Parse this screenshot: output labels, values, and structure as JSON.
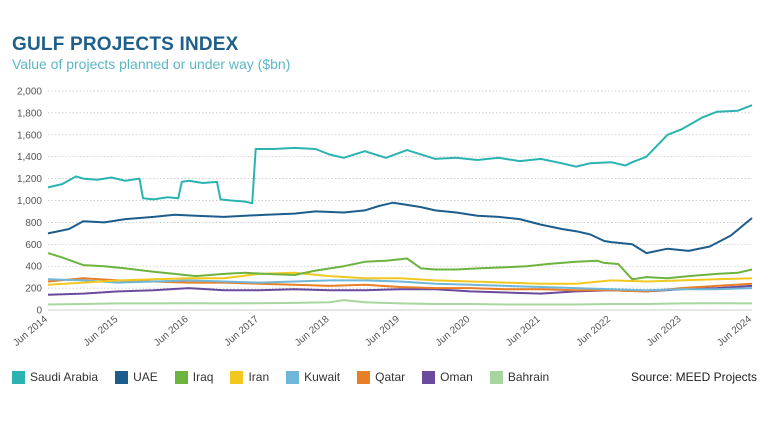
{
  "header": {
    "title": "GULF PROJECTS INDEX",
    "subtitle": "Value of projects planned or under way ($bn)"
  },
  "source": "Source: MEED Projects",
  "chart_data": {
    "type": "line",
    "ylim": [
      0,
      2000
    ],
    "yticks": [
      "0",
      "200",
      "400",
      "600",
      "800",
      "1,000",
      "1,200",
      "1,400",
      "1,600",
      "1,800",
      "2,000"
    ],
    "xlim": [
      2014.5,
      2024.5
    ],
    "xtick_labels": [
      "Jun 2014",
      "Jun 2015",
      "Jun 2016",
      "Jun 2017",
      "Jun 2018",
      "Jun 2019",
      "Jun 2020",
      "Jun 2021",
      "Jun 2022",
      "Jun 2023",
      "Jun 2024"
    ],
    "grid": true,
    "legend_position": "bottom",
    "series": [
      {
        "name": "Saudi Arabia",
        "color": "#2bb3b1",
        "x": [
          2014.5,
          2014.7,
          2014.9,
          2015.0,
          2015.2,
          2015.4,
          2015.6,
          2015.8,
          2015.85,
          2016.0,
          2016.2,
          2016.35,
          2016.4,
          2016.5,
          2016.7,
          2016.9,
          2016.95,
          2017.1,
          2017.3,
          2017.4,
          2017.45,
          2017.7,
          2018.0,
          2018.3,
          2018.5,
          2018.7,
          2019.0,
          2019.3,
          2019.6,
          2019.9,
          2020.0,
          2020.3,
          2020.6,
          2020.9,
          2021.2,
          2021.5,
          2021.8,
          2022.0,
          2022.2,
          2022.5,
          2022.7,
          2022.8,
          2023.0,
          2023.3,
          2023.5,
          2023.8,
          2024.0,
          2024.3,
          2024.5
        ],
        "y": [
          1120,
          1150,
          1220,
          1200,
          1190,
          1210,
          1180,
          1200,
          1020,
          1010,
          1030,
          1020,
          1170,
          1180,
          1160,
          1170,
          1010,
          1000,
          990,
          975,
          1470,
          1470,
          1480,
          1470,
          1420,
          1390,
          1450,
          1390,
          1460,
          1400,
          1380,
          1390,
          1370,
          1390,
          1360,
          1380,
          1340,
          1310,
          1340,
          1350,
          1320,
          1350,
          1400,
          1600,
          1650,
          1760,
          1810,
          1820,
          1870
        ]
      },
      {
        "name": "UAE",
        "color": "#1d5d8c",
        "x": [
          2014.5,
          2014.8,
          2015.0,
          2015.3,
          2015.6,
          2016.0,
          2016.3,
          2016.6,
          2017.0,
          2017.3,
          2017.6,
          2018.0,
          2018.3,
          2018.7,
          2019.0,
          2019.2,
          2019.4,
          2019.6,
          2019.8,
          2020.0,
          2020.3,
          2020.6,
          2020.9,
          2021.2,
          2021.5,
          2021.8,
          2022.0,
          2022.2,
          2022.4,
          2022.5,
          2022.8,
          2023.0,
          2023.3,
          2023.6,
          2023.9,
          2024.2,
          2024.5
        ],
        "y": [
          700,
          740,
          810,
          800,
          830,
          850,
          870,
          860,
          850,
          860,
          870,
          880,
          900,
          890,
          910,
          950,
          980,
          960,
          940,
          910,
          890,
          860,
          850,
          830,
          780,
          740,
          720,
          690,
          630,
          620,
          600,
          520,
          560,
          540,
          580,
          680,
          840
        ]
      },
      {
        "name": "Iraq",
        "color": "#6db33f",
        "x": [
          2014.5,
          2014.7,
          2015.0,
          2015.3,
          2015.6,
          2016.0,
          2016.3,
          2016.6,
          2017.0,
          2017.3,
          2017.6,
          2018.0,
          2018.3,
          2018.7,
          2019.0,
          2019.3,
          2019.6,
          2019.8,
          2020.0,
          2020.3,
          2020.6,
          2021.0,
          2021.3,
          2021.6,
          2022.0,
          2022.3,
          2022.4,
          2022.6,
          2022.8,
          2023.0,
          2023.3,
          2023.6,
          2024.0,
          2024.3,
          2024.5
        ],
        "y": [
          520,
          480,
          410,
          400,
          380,
          350,
          330,
          310,
          330,
          340,
          330,
          320,
          360,
          400,
          440,
          450,
          470,
          380,
          370,
          370,
          380,
          390,
          400,
          420,
          440,
          450,
          430,
          420,
          280,
          300,
          290,
          310,
          330,
          340,
          370
        ]
      },
      {
        "name": "Iran",
        "color": "#f2c81e",
        "x": [
          2014.5,
          2015.0,
          2015.5,
          2016.0,
          2016.5,
          2017.0,
          2017.5,
          2018.0,
          2018.5,
          2019.0,
          2019.5,
          2020.0,
          2020.5,
          2021.0,
          2021.5,
          2022.0,
          2022.5,
          2023.0,
          2023.5,
          2024.0,
          2024.5
        ],
        "y": [
          230,
          250,
          270,
          280,
          290,
          290,
          330,
          340,
          310,
          290,
          290,
          270,
          260,
          250,
          240,
          240,
          270,
          260,
          270,
          280,
          290
        ]
      },
      {
        "name": "Kuwait",
        "color": "#6fb7d9",
        "x": [
          2014.5,
          2015.0,
          2015.5,
          2016.0,
          2016.5,
          2017.0,
          2017.5,
          2018.0,
          2018.5,
          2019.0,
          2019.5,
          2020.0,
          2020.5,
          2021.0,
          2021.5,
          2022.0,
          2022.5,
          2023.0,
          2023.5,
          2024.0,
          2024.5
        ],
        "y": [
          280,
          270,
          250,
          260,
          270,
          260,
          250,
          260,
          270,
          270,
          260,
          240,
          230,
          220,
          210,
          200,
          190,
          180,
          190,
          190,
          200
        ]
      },
      {
        "name": "Qatar",
        "color": "#e87e26",
        "x": [
          2014.5,
          2015.0,
          2015.5,
          2016.0,
          2016.5,
          2017.0,
          2017.5,
          2018.0,
          2018.5,
          2019.0,
          2019.5,
          2020.0,
          2020.5,
          2021.0,
          2021.5,
          2022.0,
          2022.5,
          2023.0,
          2023.5,
          2024.0,
          2024.5
        ],
        "y": [
          260,
          290,
          270,
          260,
          250,
          250,
          240,
          230,
          220,
          230,
          210,
          200,
          200,
          190,
          190,
          180,
          180,
          170,
          200,
          220,
          240
        ]
      },
      {
        "name": "Oman",
        "color": "#6a4a9c",
        "x": [
          2014.5,
          2015.0,
          2015.5,
          2016.0,
          2016.5,
          2017.0,
          2017.5,
          2018.0,
          2018.5,
          2019.0,
          2019.5,
          2020.0,
          2020.5,
          2021.0,
          2021.5,
          2022.0,
          2022.5,
          2023.0,
          2023.5,
          2024.0,
          2024.5
        ],
        "y": [
          140,
          150,
          170,
          180,
          200,
          180,
          180,
          190,
          180,
          180,
          190,
          190,
          170,
          160,
          150,
          170,
          180,
          170,
          190,
          200,
          220
        ]
      },
      {
        "name": "Bahrain",
        "color": "#a8d5a0",
        "x": [
          2014.5,
          2015.0,
          2015.5,
          2016.0,
          2016.5,
          2017.0,
          2017.5,
          2018.0,
          2018.5,
          2018.7,
          2019.0,
          2019.5,
          2020.0,
          2020.5,
          2021.0,
          2021.5,
          2022.0,
          2022.5,
          2023.0,
          2023.5,
          2024.0,
          2024.5
        ],
        "y": [
          50,
          55,
          60,
          60,
          62,
          60,
          62,
          65,
          70,
          90,
          70,
          60,
          55,
          55,
          50,
          50,
          50,
          55,
          55,
          60,
          62,
          60
        ]
      }
    ]
  }
}
